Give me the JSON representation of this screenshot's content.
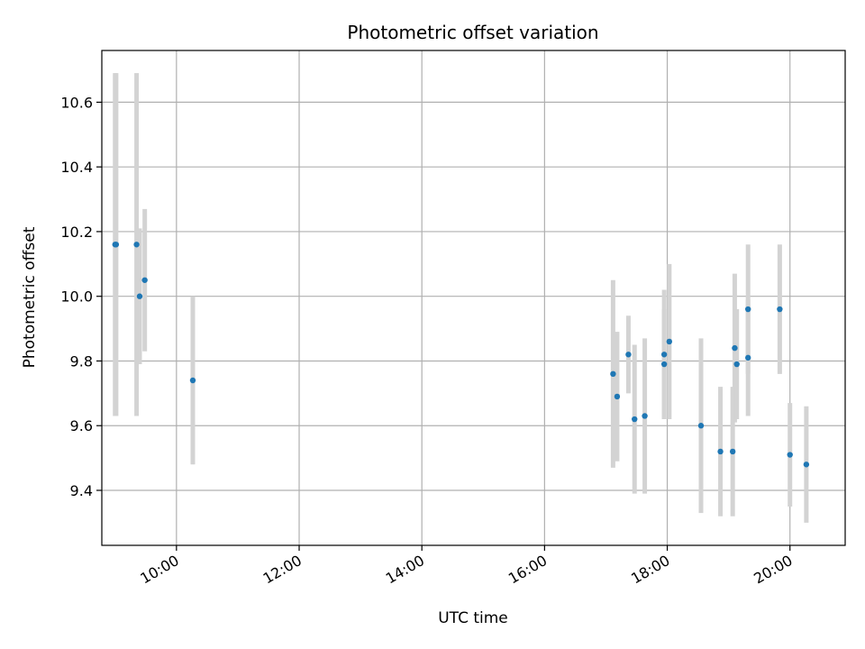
{
  "chart_data": {
    "type": "scatter",
    "title": "Photometric offset variation",
    "xlabel": "UTC time",
    "ylabel": "Photometric offset",
    "x_is_time": true,
    "xlim": [
      "08:47",
      "20:54"
    ],
    "ylim": [
      9.23,
      10.76
    ],
    "x_ticks": [
      "10:00",
      "12:00",
      "14:00",
      "16:00",
      "18:00",
      "20:00"
    ],
    "y_ticks": [
      9.4,
      9.6,
      9.8,
      10.0,
      10.2,
      10.4,
      10.6
    ],
    "grid": true,
    "colors": {
      "point": "#1f77b4",
      "errorbar": "#d3d3d3",
      "grid": "#b0b0b0"
    },
    "points": [
      {
        "x": "09:00",
        "y": 10.16,
        "err": 0.53
      },
      {
        "x": "09:01",
        "y": 10.16,
        "err": 0.53
      },
      {
        "x": "09:21",
        "y": 10.16,
        "err": 0.53
      },
      {
        "x": "09:24",
        "y": 10.0,
        "err": 0.21
      },
      {
        "x": "09:29",
        "y": 10.05,
        "err": 0.22
      },
      {
        "x": "10:16",
        "y": 9.74,
        "err": 0.26
      },
      {
        "x": "17:07",
        "y": 9.76,
        "err": 0.29
      },
      {
        "x": "17:11",
        "y": 9.69,
        "err": 0.2
      },
      {
        "x": "17:22",
        "y": 9.82,
        "err": 0.12
      },
      {
        "x": "17:28",
        "y": 9.62,
        "err": 0.23
      },
      {
        "x": "17:38",
        "y": 9.63,
        "err": 0.24
      },
      {
        "x": "17:57",
        "y": 9.82,
        "err": 0.2
      },
      {
        "x": "17:57",
        "y": 9.79,
        "err": 0.17
      },
      {
        "x": "18:02",
        "y": 9.86,
        "err": 0.24
      },
      {
        "x": "18:33",
        "y": 9.6,
        "err": 0.27
      },
      {
        "x": "18:52",
        "y": 9.52,
        "err": 0.2
      },
      {
        "x": "19:04",
        "y": 9.52,
        "err": 0.2
      },
      {
        "x": "19:06",
        "y": 9.84,
        "err": 0.23
      },
      {
        "x": "19:08",
        "y": 9.79,
        "err": 0.17
      },
      {
        "x": "19:19",
        "y": 9.96,
        "err": 0.2
      },
      {
        "x": "19:19",
        "y": 9.81,
        "err": 0.18
      },
      {
        "x": "19:50",
        "y": 9.96,
        "err": 0.2
      },
      {
        "x": "20:00",
        "y": 9.51,
        "err": 0.16
      },
      {
        "x": "20:16",
        "y": 9.48,
        "err": 0.18
      }
    ]
  }
}
